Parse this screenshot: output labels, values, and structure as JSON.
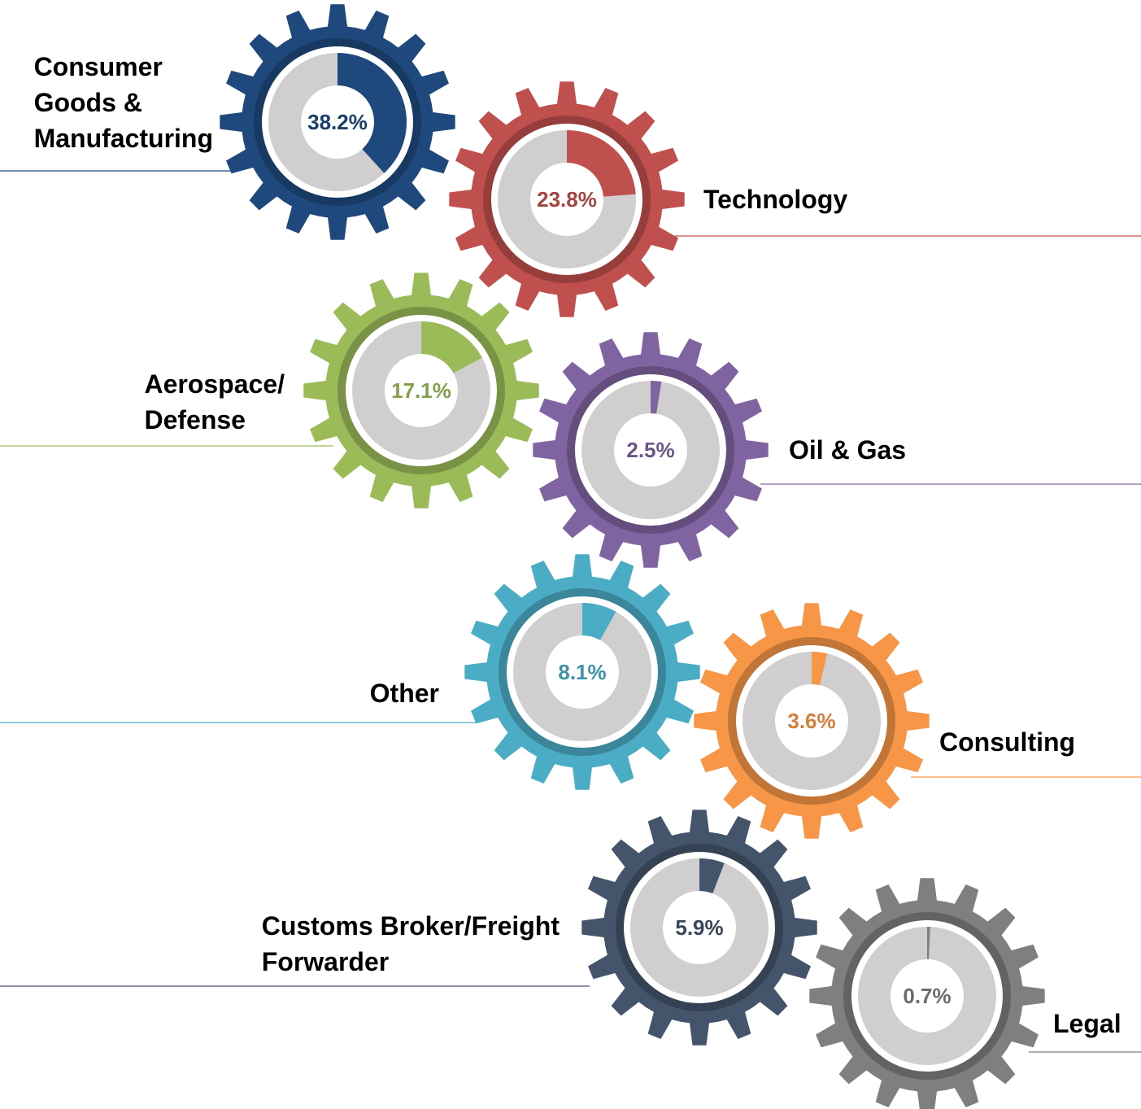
{
  "chart_data": {
    "type": "gear-donut",
    "categories": [
      "Consumer\nGoods &\nManufacturing",
      "Technology",
      "Aerospace/\nDefense",
      "Oil & Gas",
      "Other",
      "Consulting",
      "Customs Broker/Freight\nForwarder",
      "Legal"
    ],
    "values": [
      38.2,
      23.8,
      17.1,
      2.5,
      8.1,
      3.6,
      5.9,
      0.7
    ],
    "value_labels": [
      "38.2%",
      "23.8%",
      "17.1%",
      "2.5%",
      "8.1%",
      "3.6%",
      "5.9%",
      "0.7%"
    ],
    "colors": [
      "#1f497d",
      "#c0504d",
      "#9bbb59",
      "#8064a2",
      "#4bacc6",
      "#f79646",
      "#44546a",
      "#7f7f7f"
    ]
  }
}
